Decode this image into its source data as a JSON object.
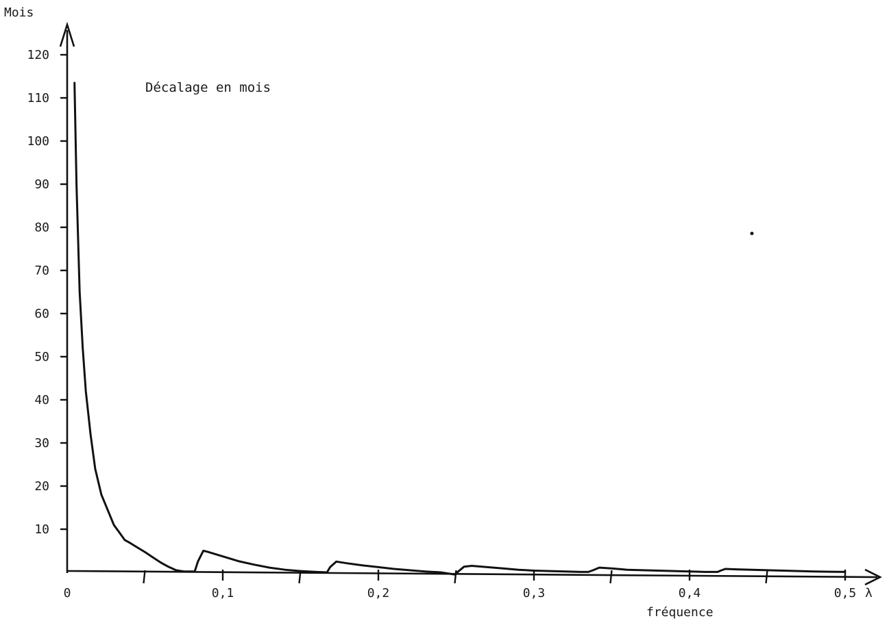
{
  "chart_data": {
    "type": "line",
    "title": "",
    "ylabel": "Mois",
    "xlabel": "fréquence",
    "x_symbol": "λ",
    "annotation": "Décalage en mois",
    "xlim": [
      0,
      0.5
    ],
    "ylim": [
      0,
      120
    ],
    "x_ticks": [
      {
        "value": 0,
        "label": "0"
      },
      {
        "value": 0.1,
        "label": "0,1"
      },
      {
        "value": 0.2,
        "label": "0,2"
      },
      {
        "value": 0.3,
        "label": "0,3"
      },
      {
        "value": 0.4,
        "label": "0,4"
      },
      {
        "value": 0.5,
        "label": "0,5"
      }
    ],
    "x_minor_ticks": [
      0.05,
      0.15,
      0.25,
      0.35,
      0.45
    ],
    "y_ticks": [
      {
        "value": 10,
        "label": "10"
      },
      {
        "value": 20,
        "label": "20"
      },
      {
        "value": 30,
        "label": "30"
      },
      {
        "value": 40,
        "label": "40"
      },
      {
        "value": 50,
        "label": "50"
      },
      {
        "value": 60,
        "label": "60"
      },
      {
        "value": 70,
        "label": "70"
      },
      {
        "value": 80,
        "label": "80"
      },
      {
        "value": 90,
        "label": "90"
      },
      {
        "value": 100,
        "label": "100"
      },
      {
        "value": 110,
        "label": "110"
      },
      {
        "value": 120,
        "label": "120"
      }
    ],
    "series": [
      {
        "x": [
          0.0047,
          0.006,
          0.008,
          0.01,
          0.012,
          0.015,
          0.018,
          0.022,
          0.026,
          0.03,
          0.034,
          0.037,
          0.04,
          0.045,
          0.05,
          0.055,
          0.06,
          0.065,
          0.07,
          0.075,
          0.079,
          0.082,
          0.084,
          0.0875,
          0.09,
          0.1,
          0.11,
          0.12,
          0.13,
          0.14,
          0.15,
          0.16,
          0.167,
          0.169,
          0.173,
          0.18,
          0.19,
          0.2,
          0.21,
          0.22,
          0.23,
          0.24,
          0.249,
          0.251,
          0.255,
          0.26,
          0.27,
          0.28,
          0.29,
          0.3,
          0.31,
          0.32,
          0.33,
          0.335,
          0.338,
          0.342,
          0.35,
          0.36,
          0.37,
          0.38,
          0.39,
          0.4,
          0.41,
          0.418,
          0.42,
          0.423,
          0.43,
          0.44,
          0.45,
          0.46,
          0.47,
          0.48,
          0.49,
          0.5
        ],
        "y": [
          113.5,
          90,
          65,
          52,
          42,
          32,
          24,
          18,
          14.5,
          11,
          9,
          7.5,
          6.9,
          5.8,
          4.7,
          3.5,
          2.3,
          1.3,
          0.5,
          0.2,
          0.2,
          0.2,
          2.5,
          5,
          4.8,
          3.7,
          2.6,
          1.8,
          1.1,
          0.6,
          0.3,
          0.1,
          0.0,
          1.2,
          2.5,
          2.1,
          1.6,
          1.2,
          0.8,
          0.5,
          0.2,
          0.0,
          -0.5,
          0.1,
          1.3,
          1.5,
          1.2,
          0.9,
          0.6,
          0.4,
          0.3,
          0.2,
          0.1,
          0.1,
          0.5,
          1.1,
          0.9,
          0.6,
          0.5,
          0.4,
          0.3,
          0.2,
          0.1,
          0.1,
          0.4,
          0.8,
          0.7,
          0.6,
          0.5,
          0.4,
          0.3,
          0.2,
          0.15,
          0.1
        ]
      }
    ]
  }
}
